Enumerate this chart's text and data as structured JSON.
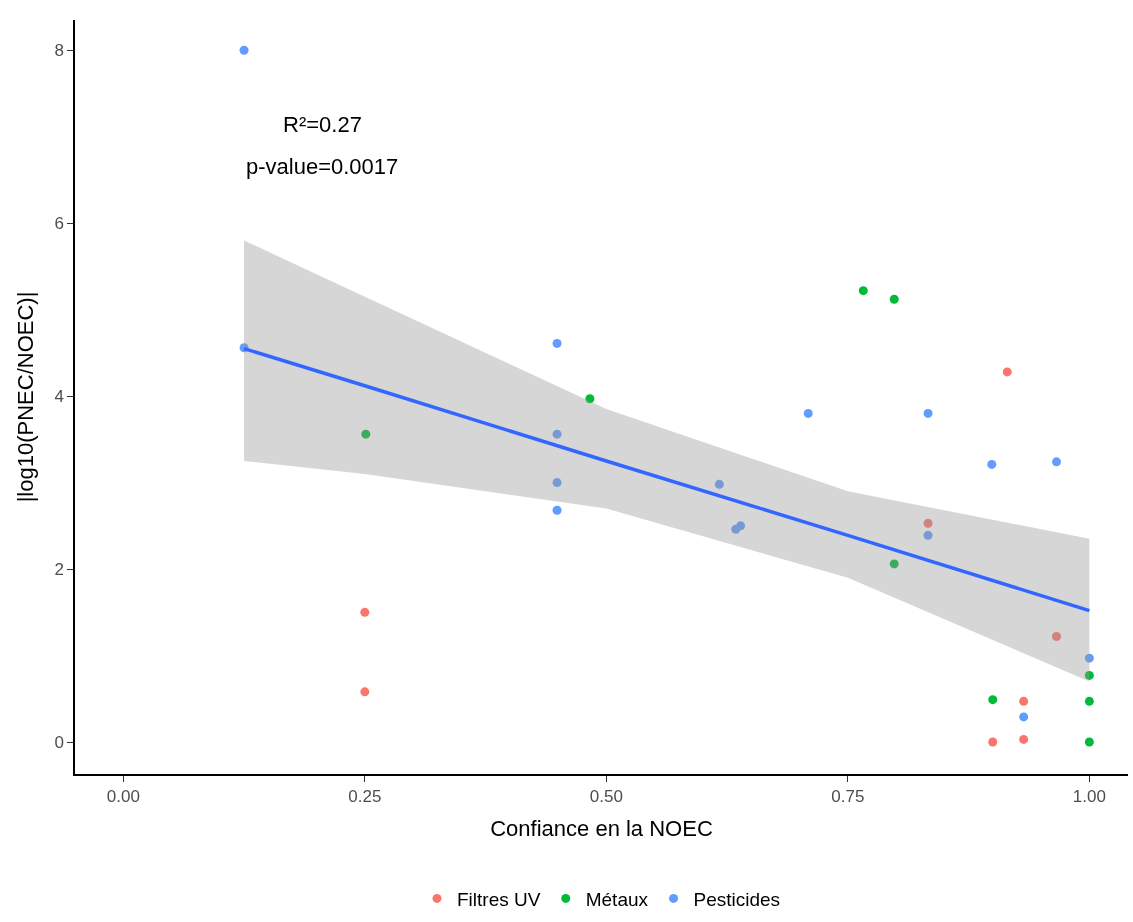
{
  "chart_data": {
    "type": "scatter",
    "xlabel": "Confiance en la NOEC",
    "ylabel": "|log10(PNEC/NOEC)|",
    "annotations": [
      "R²=0.27",
      "p-value=0.0017"
    ],
    "xlim": [
      -0.05,
      1.04
    ],
    "ylim": [
      -0.37,
      8.35
    ],
    "xticks": [
      {
        "value": 0,
        "label": "0.00"
      },
      {
        "value": 0.25,
        "label": "0.25"
      },
      {
        "value": 0.5,
        "label": "0.50"
      },
      {
        "value": 0.75,
        "label": "0.75"
      },
      {
        "value": 1,
        "label": "1.00"
      }
    ],
    "yticks": [
      0,
      2,
      4,
      6,
      8
    ],
    "legend": "bottom",
    "marker": "circle",
    "series": [
      {
        "name": "Filtres UV",
        "color": "#f8766d",
        "x": [
          0.25,
          0.25,
          0.915,
          0.833,
          0.966,
          0.932,
          0.9,
          0.932
        ],
        "values": [
          1.5,
          0.58,
          4.28,
          2.53,
          1.22,
          0.47,
          0.0,
          0.03
        ]
      },
      {
        "name": "Métaux",
        "color": "#00ba38",
        "x": [
          0.766,
          0.798,
          0.483,
          0.251,
          0.798,
          1.0,
          0.9,
          1.0,
          1.0
        ],
        "values": [
          5.22,
          5.12,
          3.97,
          3.56,
          2.06,
          0.77,
          0.49,
          0.47,
          0.0
        ]
      },
      {
        "name": "Pesticides",
        "color": "#619cff",
        "x": [
          0.125,
          0.125,
          0.449,
          0.449,
          0.449,
          0.449,
          0.709,
          0.833,
          0.899,
          0.966,
          0.617,
          0.634,
          0.639,
          0.833,
          1.0,
          0.932
        ],
        "values": [
          8.0,
          4.56,
          4.61,
          3.56,
          3.0,
          2.68,
          3.8,
          3.8,
          3.21,
          3.24,
          2.98,
          2.46,
          2.5,
          2.39,
          0.97,
          0.29
        ]
      },
      {
        "type": "line",
        "marker": "none",
        "color": "#3366ff",
        "x": [
          0.125,
          0.25,
          0.5,
          0.75,
          1.0
        ],
        "values": [
          4.55,
          4.12,
          3.25,
          2.39,
          1.52
        ],
        "lower": [
          3.25,
          3.1,
          2.7,
          1.9,
          0.7
        ],
        "upper": [
          5.8,
          5.15,
          3.85,
          2.9,
          2.35
        ]
      }
    ]
  }
}
